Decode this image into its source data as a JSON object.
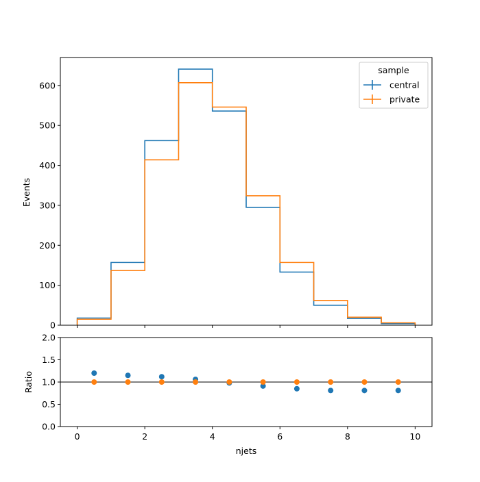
{
  "chart_data": {
    "type": "step",
    "xlabel": "njets",
    "bin_edges": [
      0,
      1,
      2,
      3,
      4,
      5,
      6,
      7,
      8,
      9,
      10
    ],
    "xlim": [
      -0.5,
      10.5
    ],
    "xticks": [
      0,
      2,
      4,
      6,
      8,
      10
    ],
    "top_panel": {
      "ylabel": "Events",
      "ylim": [
        0,
        670
      ],
      "yticks": [
        0,
        100,
        200,
        300,
        400,
        500,
        600
      ],
      "legend": {
        "title": "sample",
        "placement": "top-right"
      },
      "series": [
        {
          "name": "central",
          "color": "#1f77b4",
          "values": [
            18,
            157,
            462,
            641,
            536,
            295,
            133,
            50,
            17,
            4
          ]
        },
        {
          "name": "private",
          "color": "#ff7f0e",
          "values": [
            15,
            137,
            414,
            607,
            546,
            324,
            157,
            62,
            20,
            6
          ]
        }
      ]
    },
    "ratio_panel": {
      "ylabel": "Ratio",
      "ylim": [
        0.0,
        2.0
      ],
      "yticks": [
        0.0,
        0.5,
        1.0,
        1.5,
        2.0
      ],
      "ytick_labels": [
        "0.0",
        "0.5",
        "1.0",
        "1.5",
        "2.0"
      ],
      "reference_line": 1.0,
      "x": [
        0.5,
        1.5,
        2.5,
        3.5,
        4.5,
        5.5,
        6.5,
        7.5,
        8.5,
        9.5
      ],
      "series": [
        {
          "name": "central",
          "color": "#1f77b4",
          "values": [
            1.2,
            1.15,
            1.12,
            1.06,
            0.98,
            0.91,
            0.85,
            0.81,
            0.81,
            0.81
          ]
        },
        {
          "name": "private",
          "color": "#ff7f0e",
          "values": [
            1.0,
            1.0,
            1.0,
            1.0,
            1.0,
            1.0,
            1.0,
            1.0,
            1.0,
            1.0
          ]
        }
      ]
    }
  }
}
